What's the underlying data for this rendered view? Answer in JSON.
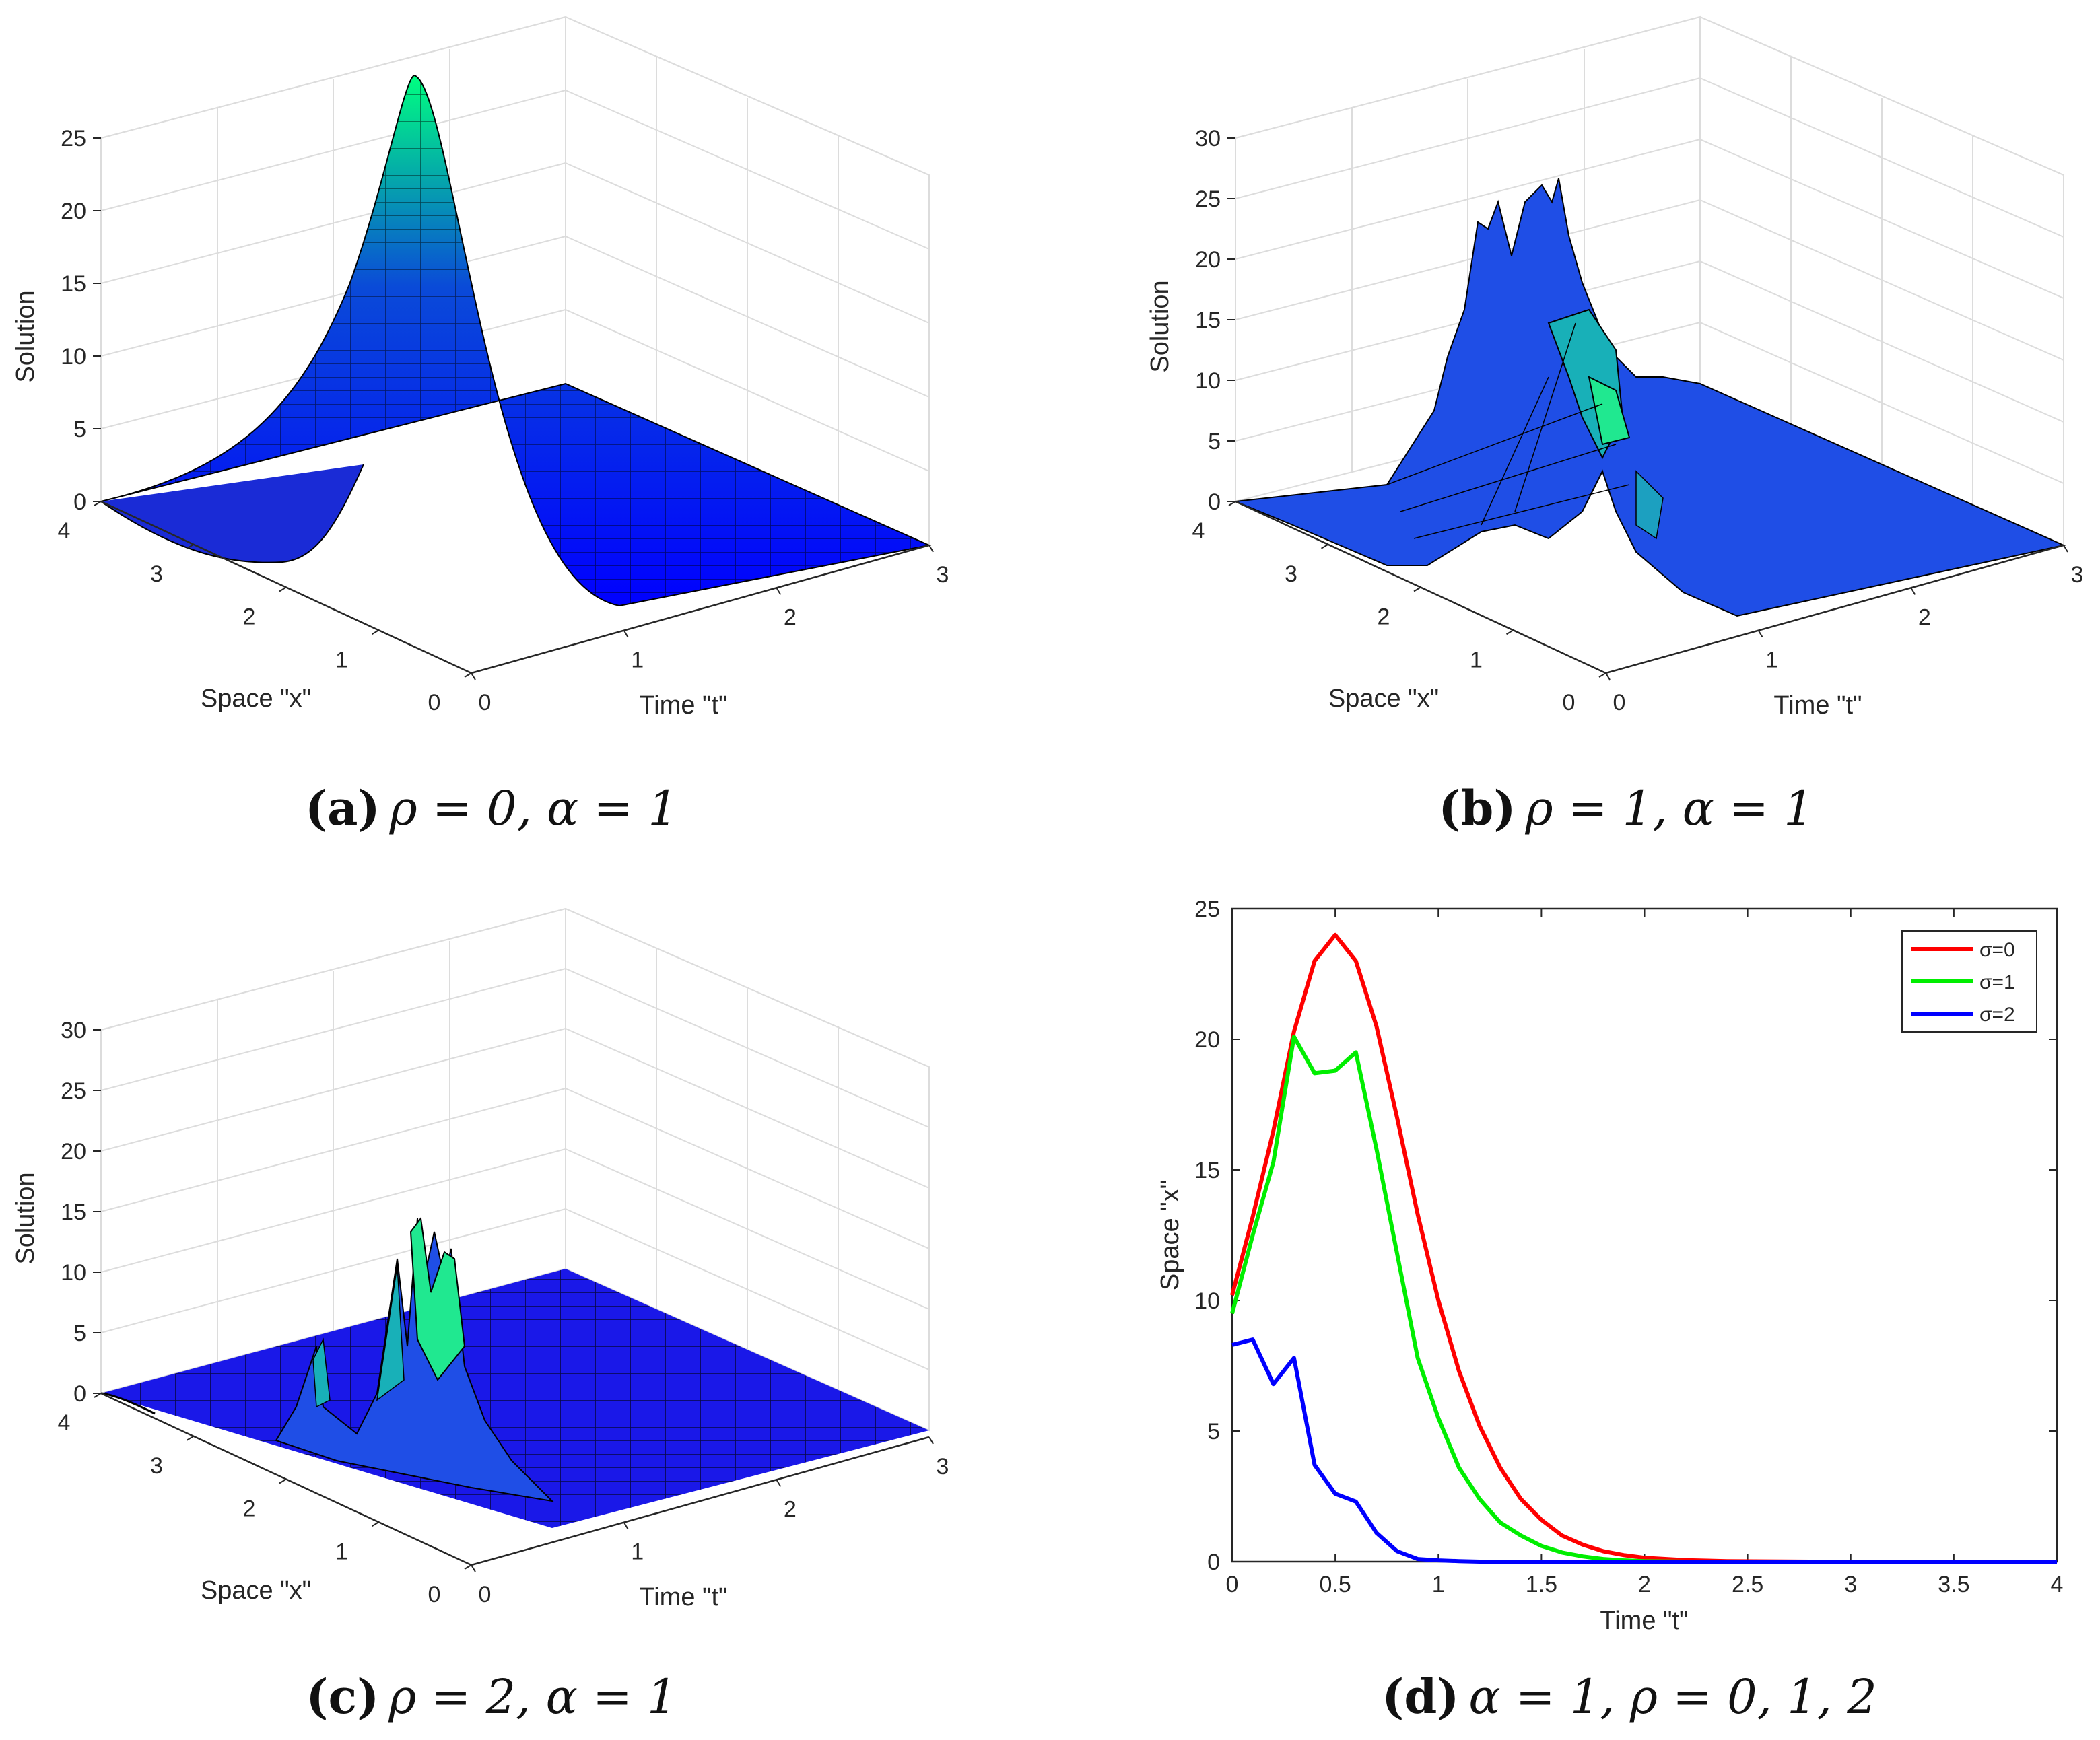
{
  "figure": {
    "panels": [
      {
        "id": "a",
        "caption_letter": "(a)",
        "caption_math": "ρ = 0, α = 1"
      },
      {
        "id": "b",
        "caption_letter": "(b)",
        "caption_math": "ρ = 1, α = 1"
      },
      {
        "id": "c",
        "caption_letter": "(c)",
        "caption_math": "ρ = 2, α = 1"
      },
      {
        "id": "d",
        "caption_letter": "(d)",
        "caption_math": "α = 1, ρ = 0, 1, 2"
      }
    ]
  },
  "chart_data": [
    {
      "id": "a",
      "type": "surface",
      "zlabel": "Solution",
      "xlabel": "Space \"x\"",
      "ylabel": "Time \"t\"",
      "x_range": [
        0,
        4
      ],
      "t_range": [
        0,
        3
      ],
      "zlim": [
        0,
        25
      ],
      "x_ticks": [
        "0",
        "1",
        "2",
        "3",
        "4"
      ],
      "t_ticks": [
        "0",
        "1",
        "2",
        "3"
      ],
      "z_ticks": [
        "0",
        "5",
        "10",
        "15",
        "20",
        "25"
      ],
      "peak": {
        "x": 3.5,
        "t": 0.5,
        "value": 24
      },
      "colormap": [
        "#0000ff",
        "#00ff80"
      ]
    },
    {
      "id": "b",
      "type": "surface",
      "zlabel": "Solution",
      "xlabel": "Space \"x\"",
      "ylabel": "Time \"t\"",
      "x_range": [
        0,
        4
      ],
      "t_range": [
        0,
        3
      ],
      "zlim": [
        0,
        30
      ],
      "x_ticks": [
        "0",
        "1",
        "2",
        "3",
        "4"
      ],
      "t_ticks": [
        "0",
        "1",
        "2",
        "3"
      ],
      "z_ticks": [
        "0",
        "5",
        "10",
        "15",
        "20",
        "25",
        "30"
      ],
      "peak": {
        "x": 3.2,
        "t": 0.5,
        "value": 27
      },
      "colormap": [
        "#0000ff",
        "#00ff80"
      ]
    },
    {
      "id": "c",
      "type": "surface",
      "zlabel": "Solution",
      "xlabel": "Space \"x\"",
      "ylabel": "Time \"t\"",
      "x_range": [
        0,
        4
      ],
      "t_range": [
        0,
        3
      ],
      "zlim": [
        0,
        30
      ],
      "x_ticks": [
        "0",
        "1",
        "2",
        "3",
        "4"
      ],
      "t_ticks": [
        "0",
        "1",
        "2",
        "3"
      ],
      "z_ticks": [
        "0",
        "5",
        "10",
        "15",
        "20",
        "25",
        "30"
      ],
      "peak": {
        "x": 2.4,
        "t": 0.3,
        "value": 16
      },
      "colormap": [
        "#0000ff",
        "#00ff80"
      ]
    },
    {
      "id": "d",
      "type": "line",
      "xlabel": "Time \"t\"",
      "ylabel": "Space \"x\"",
      "xlim": [
        0,
        4
      ],
      "ylim": [
        0,
        25
      ],
      "x_ticks": [
        "0",
        "0.5",
        "1",
        "1.5",
        "2",
        "2.5",
        "3",
        "3.5",
        "4"
      ],
      "y_ticks": [
        "0",
        "5",
        "10",
        "15",
        "20",
        "25"
      ],
      "legend_position": "top-right",
      "x": [
        0,
        0.1,
        0.2,
        0.3,
        0.4,
        0.5,
        0.6,
        0.7,
        0.8,
        0.9,
        1.0,
        1.1,
        1.2,
        1.3,
        1.4,
        1.5,
        1.6,
        1.7,
        1.8,
        1.9,
        2.0,
        2.2,
        2.4,
        2.6,
        2.8,
        3.0,
        3.2,
        3.4,
        3.6,
        3.8,
        4.0
      ],
      "series": [
        {
          "name": "σ=0",
          "color": "#ff0000",
          "values": [
            10.2,
            13.2,
            16.5,
            20.3,
            23.0,
            24.0,
            23.0,
            20.5,
            17.0,
            13.3,
            10.0,
            7.3,
            5.2,
            3.6,
            2.4,
            1.6,
            1.0,
            0.65,
            0.4,
            0.25,
            0.15,
            0.06,
            0.02,
            0.01,
            0,
            0,
            0,
            0,
            0,
            0,
            0
          ]
        },
        {
          "name": "σ=1",
          "color": "#00ee00",
          "values": [
            9.5,
            12.5,
            15.3,
            20.1,
            18.7,
            18.8,
            19.5,
            15.8,
            11.8,
            7.8,
            5.5,
            3.6,
            2.4,
            1.5,
            1.0,
            0.6,
            0.35,
            0.2,
            0.1,
            0.05,
            0.02,
            0,
            0,
            0,
            0,
            0,
            0,
            0,
            0,
            0,
            0
          ]
        },
        {
          "name": "σ=2",
          "color": "#0000ff",
          "values": [
            8.3,
            8.5,
            6.8,
            7.8,
            3.7,
            2.6,
            2.3,
            1.1,
            0.4,
            0.1,
            0.05,
            0.02,
            0,
            0,
            0,
            0,
            0,
            0,
            0,
            0,
            0,
            0,
            0,
            0,
            0,
            0,
            0,
            0,
            0,
            0,
            0
          ]
        }
      ]
    }
  ]
}
